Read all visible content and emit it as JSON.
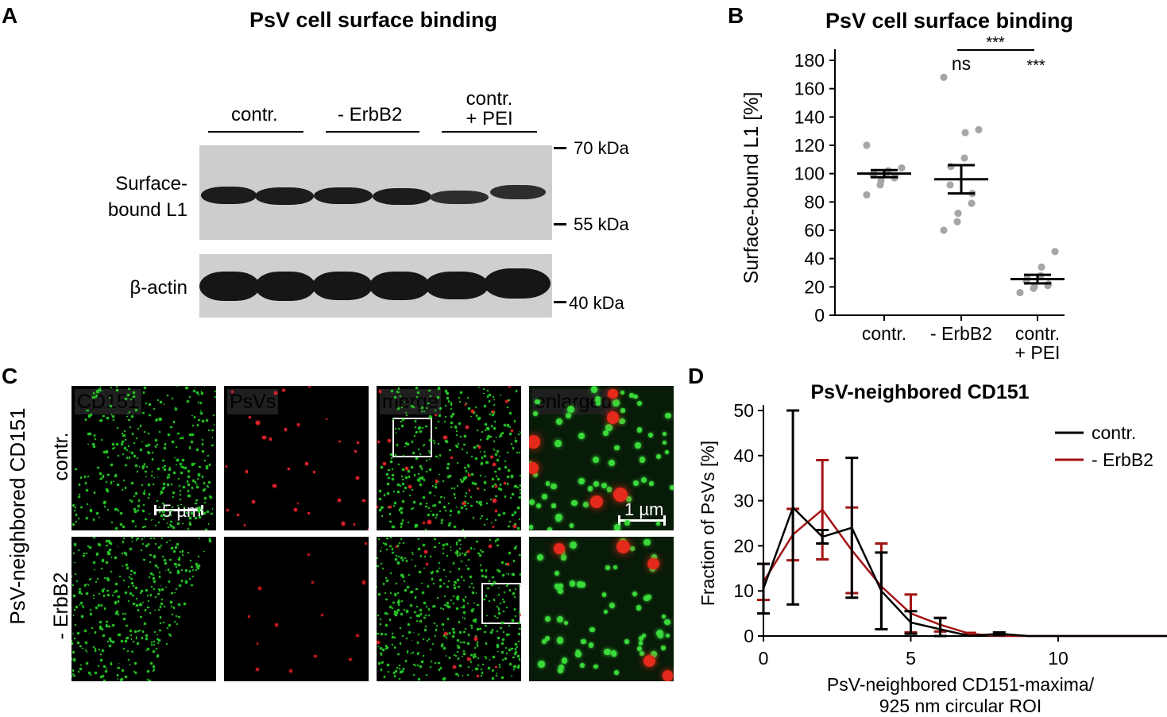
{
  "panelA": {
    "letter": "A",
    "title": "PsV cell surface binding",
    "lanes": [
      "contr.",
      "- ErbB2",
      "contr.\n+ PEI"
    ],
    "lane_line1": "contr.",
    "lane_line2": "+ PEI",
    "row_surface_line1": "Surface-",
    "row_surface_line2": "bound L1",
    "row_actin": "β-actin",
    "markers": [
      "70 kDa",
      "55 kDa",
      "40 kDa"
    ]
  },
  "panelB": {
    "letter": "B",
    "significance": {
      "ns": "ns",
      "star_pair": "***",
      "star_pei": "***"
    }
  },
  "panelC": {
    "letter": "C",
    "row_title": "PsV-neighbored CD151",
    "rows": [
      "contr.",
      "- ErbB2"
    ],
    "channels": [
      "CD151",
      "PsVs",
      "merge",
      "enlarged"
    ],
    "channel_colors": [
      "#2fd12f",
      "#e0282c",
      "#ffffff",
      "#ffffff"
    ],
    "scalebars": [
      "5 µm",
      "1 µm"
    ]
  },
  "panelD": {
    "letter": "D"
  },
  "chart_data": [
    {
      "type": "scatter",
      "title": "PsV cell surface binding",
      "xlabel": "",
      "ylabel": "Surface-bound L1 [%]",
      "categories": [
        "contr.",
        "- ErbB2",
        "contr.\n+ PEI"
      ],
      "ylim": [
        0,
        180
      ],
      "yticks": [
        0,
        20,
        40,
        60,
        80,
        100,
        120,
        140,
        160,
        180
      ],
      "points": [
        [
          85,
          92,
          95,
          97,
          98,
          99,
          100,
          101,
          102,
          104,
          120
        ],
        [
          60,
          66,
          72,
          79,
          86,
          92,
          105,
          111,
          129,
          131,
          168
        ],
        [
          16,
          19,
          20,
          21,
          22,
          24,
          26,
          28,
          34,
          45
        ]
      ],
      "mean": [
        100,
        96,
        25.5
      ],
      "sem": [
        2.5,
        10,
        3
      ],
      "point_color": "#a6a6a6"
    },
    {
      "type": "line",
      "title": "PsV-neighbored CD151",
      "xlabel": "PsV-neighbored CD151-maxima/\n925 nm circular ROI",
      "xlabel_line1": "PsV-neighbored CD151-maxima/",
      "xlabel_line2": "925 nm circular ROI",
      "ylabel": "Fraction of PsVs [%]",
      "xlim": [
        0,
        14.5
      ],
      "ylim": [
        0,
        50
      ],
      "xticks": [
        0,
        5,
        10
      ],
      "yticks": [
        0,
        10,
        20,
        30,
        40,
        50
      ],
      "legend_position": "top-right",
      "series": [
        {
          "name": "contr.",
          "color": "#000000",
          "x": [
            0,
            1,
            2,
            3,
            4,
            5,
            6,
            7,
            8,
            9,
            10,
            11,
            12,
            13,
            14
          ],
          "y": [
            10.5,
            28.5,
            22,
            24,
            10,
            3,
            1.5,
            0,
            0.5,
            0,
            0,
            0,
            0,
            0,
            0
          ],
          "err": [
            5.5,
            21.5,
            1.5,
            15.5,
            8.5,
            2.5,
            2.5,
            0,
            0.3,
            0,
            0,
            0,
            0,
            0,
            0
          ]
        },
        {
          "name": "- ErbB2",
          "color": "#a31414",
          "x": [
            0,
            1,
            2,
            3,
            4,
            5,
            6,
            7,
            8,
            9,
            10,
            11,
            12,
            13,
            14
          ],
          "y": [
            12,
            22.5,
            28,
            19,
            11,
            5,
            2.5,
            0.5,
            0,
            0,
            0,
            0,
            0,
            0,
            0
          ],
          "err": [
            4,
            5.7,
            11,
            9.5,
            9.5,
            4.2,
            1.5,
            0.2,
            0,
            0,
            0,
            0,
            0,
            0,
            0
          ]
        }
      ]
    }
  ]
}
